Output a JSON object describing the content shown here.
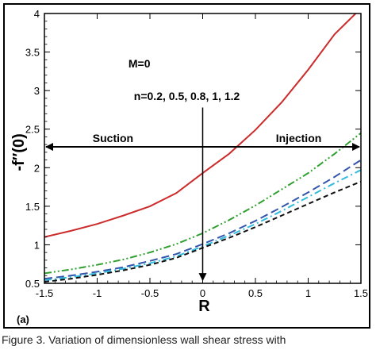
{
  "chart_data": {
    "type": "line",
    "title": "",
    "xlabel": "R",
    "ylabel": "-f″(0)",
    "xlim": [
      -1.5,
      1.5
    ],
    "ylim": [
      0.5,
      4
    ],
    "xticks": [
      -1.5,
      -1,
      -0.5,
      0,
      0.5,
      1,
      1.5
    ],
    "xtick_labels": [
      "-1.5",
      "-1",
      "-0.5",
      "0",
      "0.5",
      "1",
      "1.5"
    ],
    "yticks": [
      0.5,
      1,
      1.5,
      2,
      2.5,
      3,
      3.5,
      4
    ],
    "ytick_labels": [
      "0.5",
      "1",
      "1.5",
      "2",
      "2.5",
      "3",
      "3.5",
      "4"
    ],
    "grid": false,
    "panel_label": "(a)",
    "annotations": {
      "parameter": "M=0",
      "n_values": "n=0.2, 0.5, 0.8, 1, 1.2",
      "left_arrow_label": "Suction",
      "right_arrow_label": "Injection"
    },
    "series": [
      {
        "color": "#cc2b2b",
        "dash": "solid",
        "x": [
          -1.5,
          -1.25,
          -1.0,
          -0.75,
          -0.5,
          -0.25,
          0.0,
          0.25,
          0.5,
          0.75,
          1.0,
          1.25,
          1.45
        ],
        "values": [
          1.1,
          1.18,
          1.27,
          1.38,
          1.5,
          1.67,
          1.93,
          2.18,
          2.49,
          2.85,
          3.27,
          3.73,
          4.0
        ]
      },
      {
        "color": "#2fa02f",
        "dash": "dashdotdot",
        "x": [
          -1.5,
          -1.25,
          -1.0,
          -0.75,
          -0.5,
          -0.25,
          0.0,
          0.25,
          0.5,
          0.75,
          1.0,
          1.25,
          1.5
        ],
        "values": [
          0.63,
          0.68,
          0.74,
          0.81,
          0.9,
          1.01,
          1.15,
          1.32,
          1.51,
          1.72,
          1.93,
          2.18,
          2.45
        ]
      },
      {
        "color": "#3355aa",
        "dash": "longdash",
        "x": [
          -1.5,
          -1.25,
          -1.0,
          -0.75,
          -0.5,
          -0.25,
          0.0,
          0.25,
          0.5,
          0.75,
          1.0,
          1.25,
          1.5
        ],
        "values": [
          0.56,
          0.6,
          0.65,
          0.71,
          0.79,
          0.88,
          1.01,
          1.15,
          1.31,
          1.49,
          1.68,
          1.88,
          2.1
        ]
      },
      {
        "color": "#33bbdd",
        "dash": "dashdot",
        "x": [
          -1.5,
          -1.25,
          -1.0,
          -0.75,
          -0.5,
          -0.25,
          0.0,
          0.25,
          0.5,
          0.75,
          1.0,
          1.25,
          1.5
        ],
        "values": [
          0.54,
          0.58,
          0.63,
          0.69,
          0.76,
          0.85,
          0.98,
          1.12,
          1.27,
          1.44,
          1.62,
          1.8,
          1.97
        ]
      },
      {
        "color": "#111111",
        "dash": "dash",
        "x": [
          -1.5,
          -1.25,
          -1.0,
          -0.75,
          -0.5,
          -0.25,
          0.0,
          0.25,
          0.5,
          0.75,
          1.0,
          1.25,
          1.5
        ],
        "values": [
          0.52,
          0.56,
          0.61,
          0.67,
          0.74,
          0.83,
          0.96,
          1.09,
          1.23,
          1.38,
          1.53,
          1.68,
          1.82
        ]
      }
    ]
  },
  "caption": "Figure 3.  Variation of dimensionless wall shear stress with"
}
